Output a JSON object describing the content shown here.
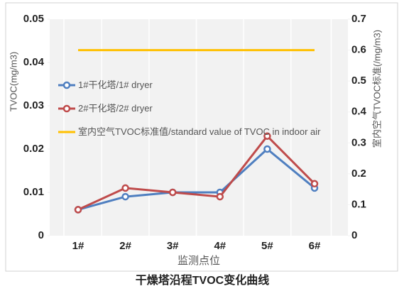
{
  "chart_data": {
    "type": "line",
    "title": "干燥塔沿程TVOC变化曲线",
    "x_label": "监测点位",
    "y_label": "TVOC(mg/m3)",
    "y2_label": "室内空气TVOC标准(/mg/m3)",
    "categories": [
      "1#",
      "2#",
      "3#",
      "4#",
      "5#",
      "6#"
    ],
    "series": [
      {
        "name": "1#干化塔/1# dryer",
        "color": "#4f7fc0",
        "values": [
          0.006,
          0.009,
          0.01,
          0.01,
          0.02,
          0.011
        ]
      },
      {
        "name": "2#干化塔/2# dryer",
        "color": "#bf4b4b",
        "values": [
          0.006,
          0.011,
          0.01,
          0.009,
          0.023,
          0.012
        ]
      },
      {
        "name": "室内空气TVOC标准值/standard value of TVOC in indoor air",
        "color": "#ffc000",
        "values": [
          0.6,
          0.6,
          0.6,
          0.6,
          0.6,
          0.6
        ],
        "axis": "y2"
      }
    ],
    "ylim": [
      0,
      0.05
    ],
    "yticks": [
      0,
      0.01,
      0.02,
      0.03,
      0.04,
      0.05
    ],
    "y2lim": [
      0,
      0.7
    ],
    "y2ticks": [
      0,
      0.1,
      0.2,
      0.3,
      0.4,
      0.5,
      0.6,
      0.7
    ],
    "legend": "upper-left"
  }
}
